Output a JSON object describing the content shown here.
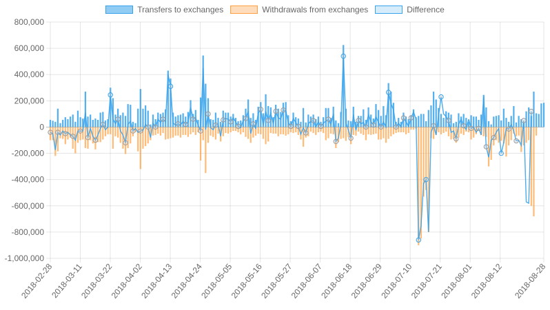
{
  "chart_data": {
    "type": "bar",
    "legend_position": "top",
    "grid": true,
    "ylim": [
      -1000000,
      800000
    ],
    "y_ticks": [
      800000,
      600000,
      400000,
      200000,
      0,
      -200000,
      -400000,
      -600000,
      -800000,
      -1000000
    ],
    "y_tick_labels": [
      "800,000",
      "600,000",
      "400,000",
      "200,000",
      "0",
      "-200,000",
      "-400,000",
      "-600,000",
      "-800,000",
      "-1,000,000"
    ],
    "x_start": "2018-02-28",
    "x_end": "2018-08-28",
    "x_tick_labels": [
      "2018-02-28",
      "2018-03-11",
      "2018-03-22",
      "2018-04-02",
      "2018-04-13",
      "2018-04-24",
      "2018-05-05",
      "2018-05-16",
      "2018-05-27",
      "2018-06-07",
      "2018-06-18",
      "2018-06-29",
      "2018-07-10",
      "2018-07-21",
      "2018-08-01",
      "2018-08-12",
      "2018-08-28"
    ],
    "series": [
      {
        "name": "Transfers to exchanges",
        "kind": "bar",
        "color": "#36a2eb",
        "fill": "rgba(54,162,235,0.55)",
        "values": [
          55000,
          48000,
          40000,
          140000,
          30000,
          55000,
          75000,
          60000,
          80000,
          95000,
          40000,
          125000,
          75000,
          65000,
          270000,
          80000,
          95000,
          55000,
          65000,
          55000,
          110000,
          115000,
          50000,
          60000,
          300000,
          220000,
          95000,
          140000,
          90000,
          110000,
          85000,
          175000,
          170000,
          40000,
          30000,
          140000,
          290000,
          140000,
          165000,
          125000,
          20000,
          95000,
          60000,
          110000,
          100000,
          110000,
          135000,
          430000,
          370000,
          110000,
          80000,
          90000,
          95000,
          105000,
          80000,
          115000,
          205000,
          100000,
          130000,
          55000,
          225000,
          545000,
          330000,
          220000,
          60000,
          55000,
          110000,
          70000,
          40000,
          125000,
          110000,
          110000,
          80000,
          100000,
          70000,
          45000,
          50000,
          90000,
          140000,
          210000,
          70000,
          105000,
          55000,
          155000,
          190000,
          105000,
          250000,
          160000,
          150000,
          75000,
          170000,
          140000,
          115000,
          185000,
          190000,
          90000,
          45000,
          110000,
          75000,
          65000,
          40000,
          145000,
          35000,
          95000,
          80000,
          95000,
          60000,
          80000,
          40000,
          75000,
          145000,
          145000,
          70000,
          155000,
          50000,
          30000,
          115000,
          625000,
          140000,
          50000,
          45000,
          155000,
          40000,
          85000,
          85000,
          135000,
          55000,
          150000,
          95000,
          65000,
          175000,
          130000,
          85000,
          160000,
          90000,
          335000,
          270000,
          185000,
          40000,
          70000,
          40000,
          110000,
          80000,
          60000,
          90000,
          135000,
          75000,
          85000,
          100000,
          100000,
          45000,
          130000,
          165000,
          270000,
          210000,
          145000,
          100000,
          70000,
          120000,
          110000,
          95000,
          30000,
          40000,
          105000,
          80000,
          100000,
          70000,
          40000,
          90000,
          80000,
          80000,
          55000,
          95000,
          245000,
          150000,
          45000,
          20000,
          80000,
          85000,
          90000,
          50000,
          140000,
          70000,
          40000,
          85000,
          160000,
          35000,
          85000,
          60000,
          35000,
          120000,
          150000,
          85000,
          270000,
          105000,
          100000,
          180000,
          185000
        ]
      },
      {
        "name": "Withdrawals from exchanges",
        "kind": "bar",
        "color": "#ff9f40",
        "fill": "rgba(255,159,64,0.7)",
        "values": [
          -100000,
          -100000,
          -220000,
          -185000,
          -85000,
          -90000,
          -130000,
          -95000,
          -80000,
          -165000,
          -200000,
          -120000,
          -100000,
          -95000,
          -160000,
          -165000,
          -100000,
          -125000,
          -170000,
          -115000,
          -115000,
          -95000,
          -70000,
          -55000,
          -55000,
          -165000,
          -70000,
          -80000,
          -120000,
          -165000,
          -205000,
          -160000,
          -125000,
          -70000,
          -40000,
          -185000,
          -320000,
          -165000,
          -145000,
          -125000,
          -100000,
          -65000,
          -60000,
          -50000,
          -65000,
          -45000,
          -95000,
          -90000,
          -85000,
          -80000,
          -65000,
          -65000,
          -80000,
          -60000,
          -60000,
          -75000,
          -55000,
          -40000,
          -60000,
          -40000,
          -255000,
          -100000,
          -350000,
          -120000,
          -65000,
          -75000,
          -95000,
          -50000,
          -110000,
          -70000,
          -45000,
          -50000,
          -40000,
          -30000,
          -30000,
          -40000,
          -55000,
          -40000,
          -75000,
          -90000,
          -120000,
          -80000,
          -65000,
          -50000,
          -55000,
          -90000,
          -130000,
          -110000,
          -45000,
          -50000,
          -50000,
          -70000,
          -55000,
          -55000,
          -65000,
          -55000,
          -40000,
          -45000,
          -40000,
          -60000,
          -95000,
          -150000,
          -80000,
          -70000,
          -35000,
          -45000,
          -60000,
          -40000,
          -35000,
          -45000,
          -100000,
          -85000,
          -50000,
          -55000,
          -160000,
          -115000,
          -90000,
          -85000,
          -105000,
          -75000,
          -130000,
          -60000,
          -65000,
          -35000,
          -50000,
          -60000,
          -100000,
          -55000,
          -60000,
          -55000,
          -50000,
          -95000,
          -95000,
          -85000,
          -120000,
          -90000,
          -70000,
          -55000,
          -45000,
          -40000,
          -40000,
          -40000,
          -55000,
          -45000,
          -20000,
          -20000,
          -15000,
          -900000,
          -850000,
          -530000,
          -480000,
          -800000,
          -85000,
          -90000,
          -60000,
          -40000,
          -55000,
          -45000,
          -35000,
          -70000,
          -95000,
          -90000,
          -120000,
          -80000,
          -50000,
          -60000,
          -35000,
          -40000,
          -95000,
          -80000,
          -55000,
          -30000,
          -60000,
          -70000,
          -75000,
          -300000,
          -250000,
          -140000,
          -100000,
          -120000,
          -105000,
          -125000,
          -225000,
          -140000,
          -100000,
          -50000,
          -70000,
          -65000,
          -190000,
          -140000,
          -120000,
          -100000,
          -600000,
          -680000,
          -65000
        ]
      },
      {
        "name": "Difference",
        "kind": "line",
        "color": "#36a2eb",
        "fill": "rgba(54,162,235,0.2)",
        "values": [
          -40000,
          -50000,
          -175000,
          -40000,
          -60000,
          -30000,
          -50000,
          -40000,
          -60000,
          -70000,
          -100000,
          -30000,
          -30000,
          -30000,
          110000,
          -80000,
          -10000,
          -70000,
          -100000,
          -60000,
          -10000,
          20000,
          -20000,
          0,
          245000,
          60000,
          25000,
          60000,
          -30000,
          -60000,
          -120000,
          20000,
          45000,
          -30000,
          -10000,
          -40000,
          -30000,
          -25000,
          20000,
          0,
          -80000,
          30000,
          0,
          60000,
          35000,
          60000,
          40000,
          400000,
          310000,
          30000,
          15000,
          25000,
          15000,
          45000,
          20000,
          40000,
          150000,
          60000,
          70000,
          15000,
          -30000,
          450000,
          -20000,
          100000,
          -5000,
          -20000,
          15000,
          20000,
          -70000,
          55000,
          65000,
          60000,
          40000,
          70000,
          40000,
          5000,
          -5000,
          50000,
          65000,
          120000,
          -50000,
          25000,
          -10000,
          105000,
          135000,
          15000,
          120000,
          50000,
          105000,
          25000,
          120000,
          70000,
          60000,
          130000,
          125000,
          35000,
          5000,
          65000,
          35000,
          5000,
          -55000,
          -5000,
          -45000,
          25000,
          45000,
          50000,
          0,
          40000,
          5000,
          30000,
          45000,
          60000,
          20000,
          100000,
          -110000,
          -85000,
          25000,
          540000,
          35000,
          -25000,
          -85000,
          95000,
          -25000,
          50000,
          25000,
          35000,
          0,
          95000,
          40000,
          15000,
          80000,
          35000,
          0,
          40000,
          0,
          265000,
          180000,
          130000,
          0,
          30000,
          0,
          70000,
          40000,
          5000,
          70000,
          115000,
          60000,
          -860000,
          -750000,
          -430000,
          -400000,
          -800000,
          -40000,
          10000,
          -60000,
          90000,
          230000,
          100000,
          80000,
          50000,
          -40000,
          -30000,
          -90000,
          20000,
          60000,
          10000,
          -20000,
          60000,
          -10000,
          0,
          -40000,
          -10000,
          -60000,
          230000,
          -150000,
          -230000,
          -100000,
          -80000,
          -40000,
          -10000,
          -200000,
          -120000,
          -10000,
          -15000,
          20000,
          -30000,
          -105000,
          -100000,
          -140000,
          50000,
          -570000,
          -580000,
          120000
        ]
      }
    ]
  }
}
